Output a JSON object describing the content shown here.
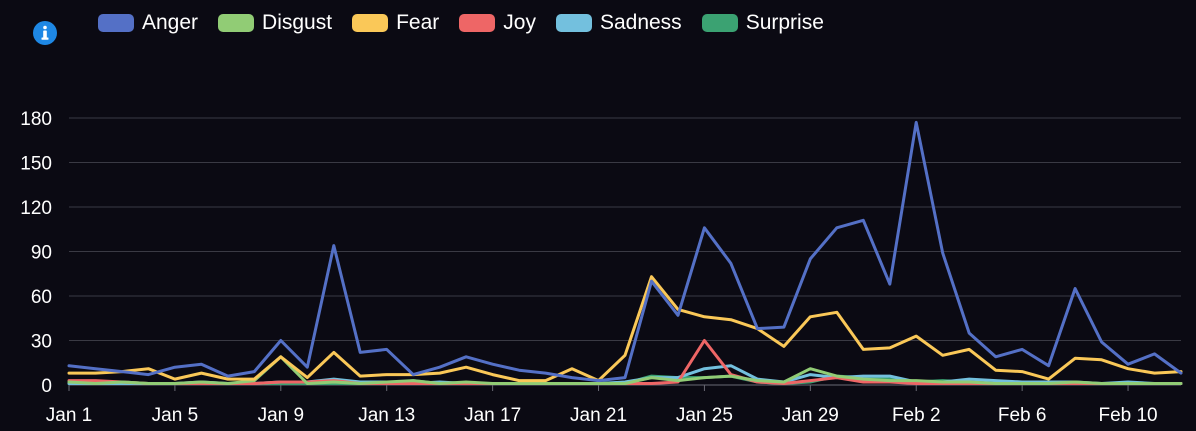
{
  "info_icon": "info-circle-icon",
  "chart_data": {
    "type": "line",
    "x": [
      "Jan 1",
      "Jan 2",
      "Jan 3",
      "Jan 4",
      "Jan 5",
      "Jan 6",
      "Jan 7",
      "Jan 8",
      "Jan 9",
      "Jan 10",
      "Jan 11",
      "Jan 12",
      "Jan 13",
      "Jan 14",
      "Jan 15",
      "Jan 16",
      "Jan 17",
      "Jan 18",
      "Jan 19",
      "Jan 20",
      "Jan 21",
      "Jan 22",
      "Jan 23",
      "Jan 24",
      "Jan 25",
      "Jan 26",
      "Jan 27",
      "Jan 28",
      "Jan 29",
      "Jan 30",
      "Jan 31",
      "Feb 1",
      "Feb 2",
      "Feb 3",
      "Feb 4",
      "Feb 5",
      "Feb 6",
      "Feb 7",
      "Feb 8",
      "Feb 9",
      "Feb 10",
      "Feb 11",
      "Feb 12"
    ],
    "x_ticks": [
      "Jan 1",
      "Jan 5",
      "Jan 9",
      "Jan 13",
      "Jan 17",
      "Jan 21",
      "Jan 25",
      "Jan 29",
      "Feb 2",
      "Feb 6",
      "Feb 10"
    ],
    "ylim": [
      0,
      180
    ],
    "y_ticks": [
      0,
      30,
      60,
      90,
      120,
      150,
      180
    ],
    "grid": true,
    "legend_position": "top-left",
    "series": [
      {
        "name": "Anger",
        "color": "#5470c6",
        "values": [
          13,
          11,
          9,
          7,
          12,
          14,
          6,
          9,
          30,
          12,
          94,
          22,
          24,
          7,
          12,
          19,
          14,
          10,
          8,
          5,
          3,
          5,
          70,
          47,
          106,
          82,
          38,
          39,
          85,
          106,
          111,
          68,
          177,
          89,
          35,
          19,
          24,
          13,
          65,
          29,
          14,
          21,
          8
        ]
      },
      {
        "name": "Disgust",
        "color": "#91cc75",
        "values": [
          2,
          1,
          2,
          1,
          1,
          2,
          1,
          3,
          19,
          1,
          2,
          1,
          2,
          3,
          1,
          2,
          1,
          1,
          1,
          1,
          1,
          1,
          5,
          3,
          5,
          6,
          3,
          2,
          11,
          6,
          4,
          3,
          3,
          2,
          2,
          1,
          1,
          1,
          2,
          1,
          1,
          1,
          1
        ]
      },
      {
        "name": "Fear",
        "color": "#fac858",
        "values": [
          8,
          8,
          9,
          11,
          4,
          8,
          4,
          4,
          19,
          5,
          22,
          6,
          7,
          7,
          8,
          12,
          7,
          3,
          3,
          11,
          3,
          20,
          73,
          51,
          46,
          44,
          38,
          26,
          46,
          49,
          24,
          25,
          33,
          20,
          24,
          10,
          9,
          4,
          18,
          17,
          11,
          8,
          9
        ]
      },
      {
        "name": "Joy",
        "color": "#ee6666",
        "values": [
          3,
          3,
          2,
          1,
          1,
          1,
          1,
          1,
          2,
          2,
          3,
          1,
          1,
          1,
          1,
          1,
          1,
          1,
          1,
          1,
          1,
          1,
          1,
          2,
          30,
          7,
          2,
          1,
          3,
          5,
          2,
          2,
          1,
          1,
          1,
          1,
          1,
          1,
          1,
          1,
          1,
          1,
          1
        ]
      },
      {
        "name": "Sadness",
        "color": "#73c0de",
        "values": [
          1,
          1,
          1,
          1,
          1,
          2,
          1,
          1,
          2,
          2,
          4,
          2,
          2,
          1,
          2,
          1,
          1,
          1,
          1,
          1,
          1,
          2,
          5,
          5,
          11,
          13,
          4,
          2,
          7,
          5,
          6,
          6,
          2,
          2,
          4,
          3,
          2,
          2,
          2,
          1,
          2,
          1,
          1
        ]
      },
      {
        "name": "Surprise",
        "color": "#3ba272",
        "values": [
          1,
          1,
          2,
          1,
          1,
          1,
          1,
          1,
          1,
          1,
          1,
          1,
          1,
          3,
          1,
          1,
          1,
          1,
          1,
          1,
          1,
          1,
          6,
          5,
          5,
          6,
          2,
          1,
          2,
          6,
          5,
          4,
          2,
          3,
          2,
          1,
          1,
          1,
          1,
          1,
          1,
          1,
          1
        ]
      }
    ]
  }
}
